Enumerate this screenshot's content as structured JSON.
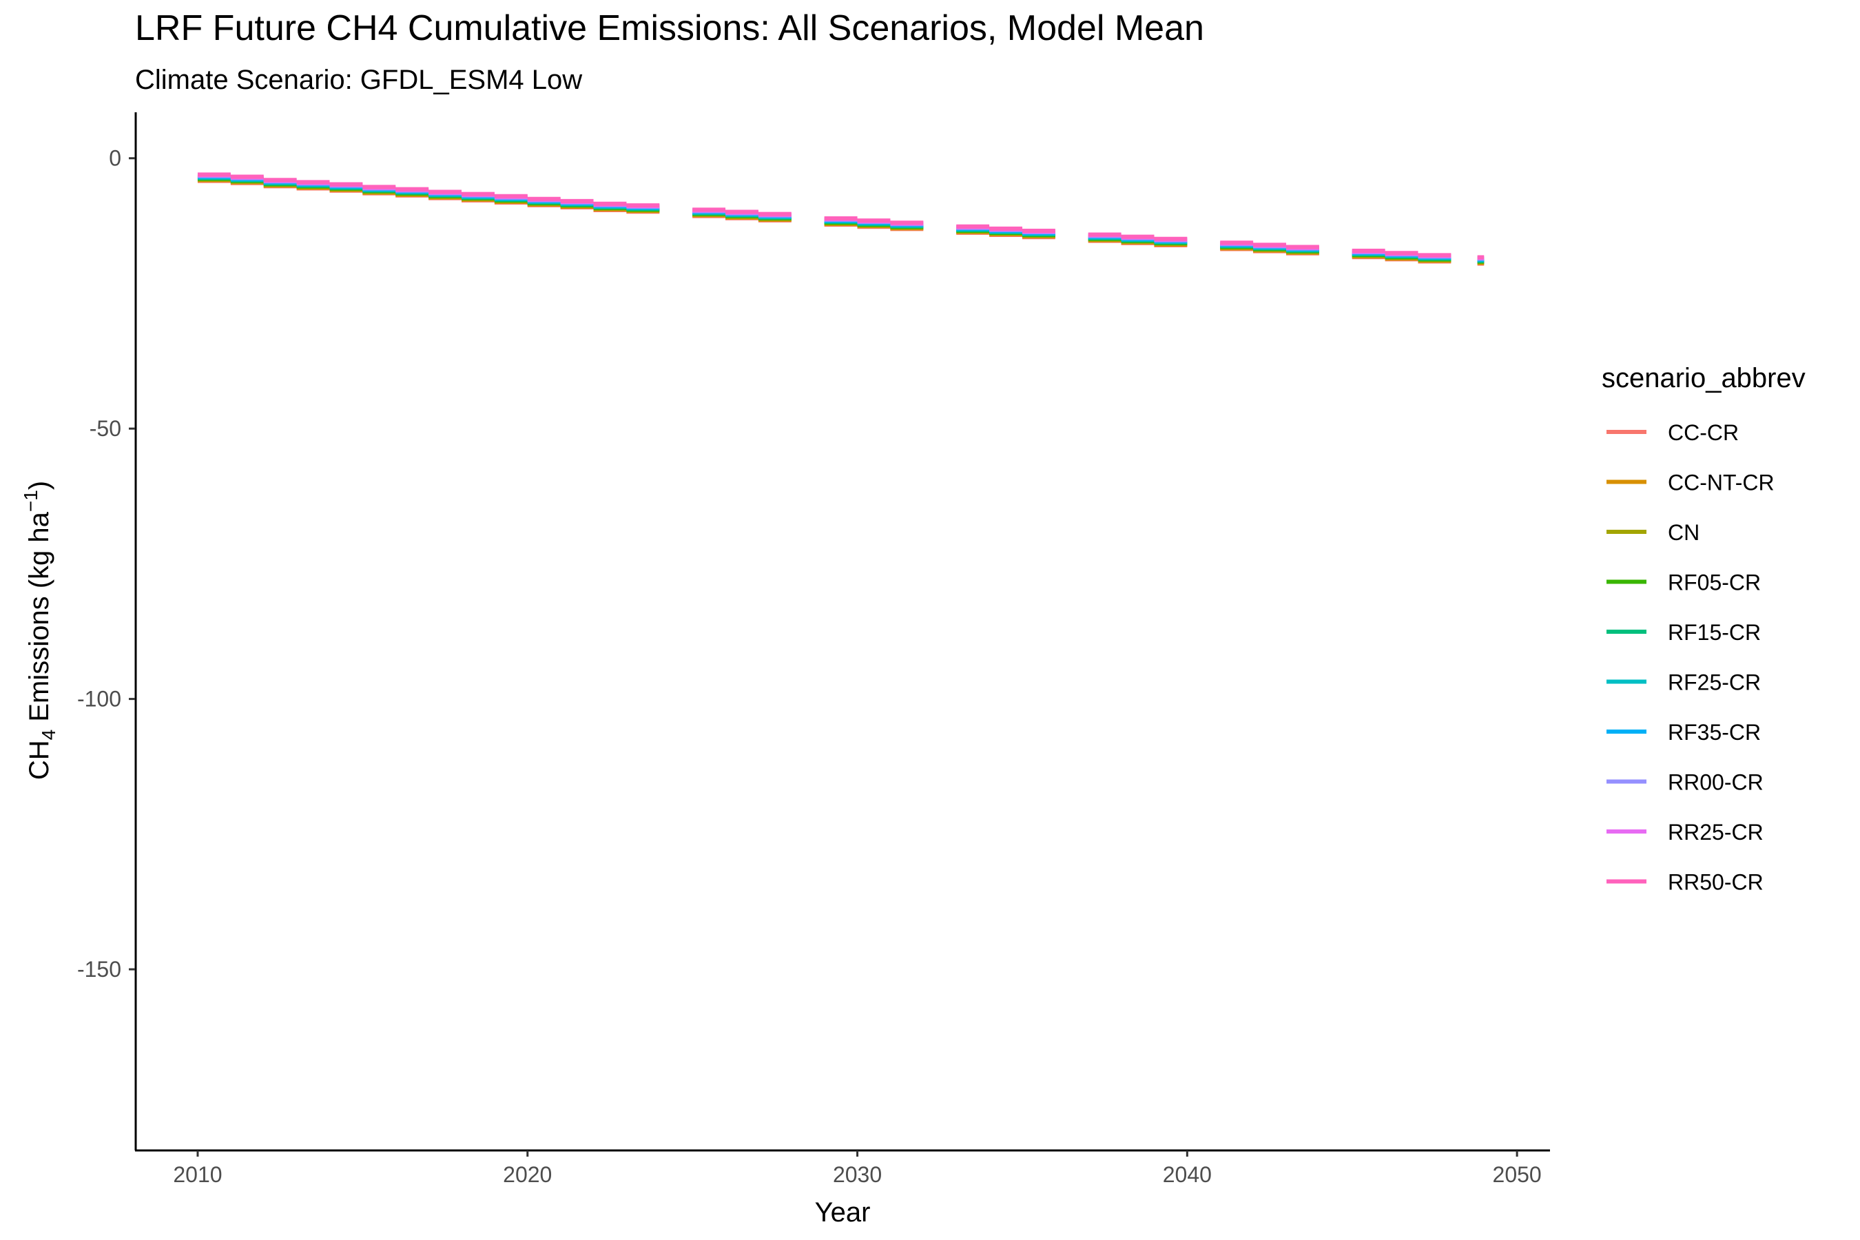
{
  "chart_data": {
    "type": "line",
    "title": "LRF  Future CH4 Cumulative Emissions: All Scenarios, Model Mean",
    "subtitle": "Climate Scenario: GFDL_ESM4 Low",
    "xlabel": "Year",
    "ylabel": {
      "prefix": "CH",
      "subscript": "4",
      "middle": " Emissions (kg ha",
      "superscript": "−1",
      "suffix": ")"
    },
    "xlim": [
      2008.1,
      2051
    ],
    "ylim": [
      -183.5,
      8.5
    ],
    "x_ticks": [
      2010,
      2020,
      2030,
      2040,
      2050
    ],
    "x_tick_labels": [
      "2010",
      "2020",
      "2030",
      "2040",
      "2050"
    ],
    "y_ticks": [
      0,
      -50,
      -100,
      -150
    ],
    "y_tick_labels": [
      "0",
      "-50",
      "-100",
      "-150"
    ],
    "grid": false,
    "legend": {
      "title": "scenario_abbrev",
      "position": "right"
    },
    "series": [
      {
        "name": "CC-CR",
        "color": "#F8766D"
      },
      {
        "name": "CC-NT-CR",
        "color": "#D89000"
      },
      {
        "name": "CN",
        "color": "#A3A500"
      },
      {
        "name": "RF05-CR",
        "color": "#39B600"
      },
      {
        "name": "RF15-CR",
        "color": "#00BF7D"
      },
      {
        "name": "RF25-CR",
        "color": "#00BFC4"
      },
      {
        "name": "RF35-CR",
        "color": "#00B0F6"
      },
      {
        "name": "RR00-CR",
        "color": "#9590FF"
      },
      {
        "name": "RR25-CR",
        "color": "#E76BF3"
      },
      {
        "name": "RR50-CR",
        "color": "#FF62BC"
      }
    ],
    "step_segments": [
      {
        "x0": 2010.0,
        "x1": 2011.0,
        "y": -3.6
      },
      {
        "x0": 2011.0,
        "x1": 2012.0,
        "y": -4.0
      },
      {
        "x0": 2012.0,
        "x1": 2013.0,
        "y": -4.6
      },
      {
        "x0": 2013.0,
        "x1": 2014.0,
        "y": -5.0
      },
      {
        "x0": 2014.0,
        "x1": 2015.0,
        "y": -5.4
      },
      {
        "x0": 2015.0,
        "x1": 2016.0,
        "y": -5.9
      },
      {
        "x0": 2016.0,
        "x1": 2017.0,
        "y": -6.3
      },
      {
        "x0": 2017.0,
        "x1": 2018.0,
        "y": -6.8
      },
      {
        "x0": 2018.0,
        "x1": 2019.0,
        "y": -7.2
      },
      {
        "x0": 2019.0,
        "x1": 2020.0,
        "y": -7.6
      },
      {
        "x0": 2020.0,
        "x1": 2021.0,
        "y": -8.1
      },
      {
        "x0": 2021.0,
        "x1": 2022.0,
        "y": -8.5
      },
      {
        "x0": 2022.0,
        "x1": 2023.0,
        "y": -9.0
      },
      {
        "x0": 2023.0,
        "x1": 2024.0,
        "y": -9.3
      },
      {
        "x0": 2025.0,
        "x1": 2026.0,
        "y": -10.1
      },
      {
        "x0": 2026.0,
        "x1": 2027.0,
        "y": -10.5
      },
      {
        "x0": 2027.0,
        "x1": 2028.0,
        "y": -10.9
      },
      {
        "x0": 2029.0,
        "x1": 2030.0,
        "y": -11.7
      },
      {
        "x0": 2030.0,
        "x1": 2031.0,
        "y": -12.1
      },
      {
        "x0": 2031.0,
        "x1": 2032.0,
        "y": -12.5
      },
      {
        "x0": 2033.0,
        "x1": 2034.0,
        "y": -13.2
      },
      {
        "x0": 2034.0,
        "x1": 2035.0,
        "y": -13.6
      },
      {
        "x0": 2035.0,
        "x1": 2036.0,
        "y": -14.0
      },
      {
        "x0": 2037.0,
        "x1": 2038.0,
        "y": -14.7
      },
      {
        "x0": 2038.0,
        "x1": 2039.0,
        "y": -15.1
      },
      {
        "x0": 2039.0,
        "x1": 2040.0,
        "y": -15.5
      },
      {
        "x0": 2041.0,
        "x1": 2042.0,
        "y": -16.2
      },
      {
        "x0": 2042.0,
        "x1": 2043.0,
        "y": -16.6
      },
      {
        "x0": 2043.0,
        "x1": 2044.0,
        "y": -17.0
      },
      {
        "x0": 2045.0,
        "x1": 2046.0,
        "y": -17.7
      },
      {
        "x0": 2046.0,
        "x1": 2047.0,
        "y": -18.1
      },
      {
        "x0": 2047.0,
        "x1": 2048.0,
        "y": -18.5
      },
      {
        "x0": 2048.8,
        "x1": 2049.0,
        "y": -18.9
      }
    ]
  }
}
